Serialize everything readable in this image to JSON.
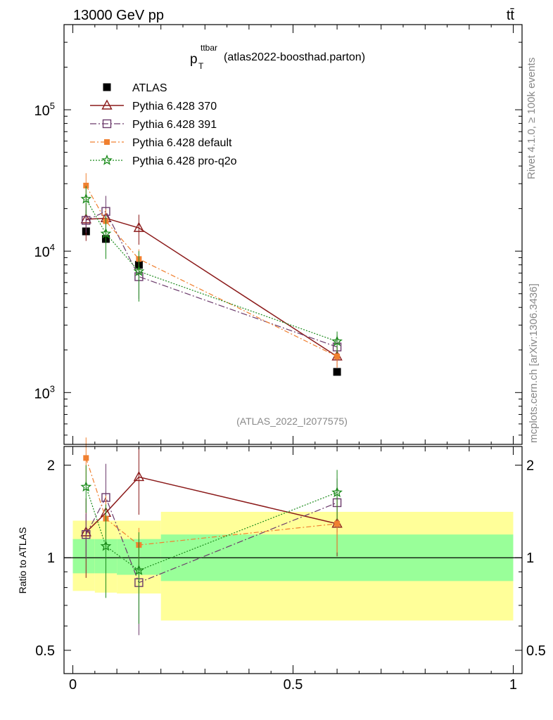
{
  "header": {
    "energy_label": "13000 GeV pp",
    "process_label": "tt̄"
  },
  "title": {
    "main": "p",
    "sub": "T",
    "sup": "ttbar",
    "rest": "(atlas2022-boosthad.parton)"
  },
  "side_labels": {
    "rivet": "Rivet 4.1.0, ≥ 100k events",
    "mcplots": "mcplots.cern.ch [arXiv:1306.3436]"
  },
  "analysis_id": "(ATLAS_2022_I2077575)",
  "colors": {
    "atlas": "#000000",
    "py370": "#8b1a1a",
    "py391": "#6b3a6b",
    "pydefault": "#f08030",
    "pyq2o": "#1a8a1a",
    "band_inner": "#99ff99",
    "band_outer": "#ffff99"
  },
  "chart_data": {
    "type": "scatter",
    "main_panel": {
      "yscale": "log",
      "ylim": [
        430,
        400000
      ],
      "ytick_labels": [
        {
          "value": 1000,
          "base": "10",
          "exp": "3"
        },
        {
          "value": 10000,
          "base": "10",
          "exp": "4"
        },
        {
          "value": 100000,
          "base": "10",
          "exp": "5"
        }
      ],
      "legend_position": "top-left",
      "series": [
        {
          "key": "atlas",
          "name": "ATLAS",
          "marker": "square-filled",
          "x": [
            0.03,
            0.075,
            0.15,
            0.6
          ],
          "y": [
            13800,
            12200,
            8000,
            1400
          ],
          "yerr_up": [
            0,
            0,
            0,
            0
          ],
          "yerr_dn": [
            0,
            0,
            0,
            0
          ]
        },
        {
          "key": "py370",
          "name": "Pythia 6.428 370",
          "marker": "triangle-open",
          "linestyle": "solid",
          "x": [
            0.03,
            0.075,
            0.15,
            0.6
          ],
          "y": [
            16800,
            17100,
            14600,
            1800
          ],
          "yerr_up": [
            5000,
            3000,
            3500,
            300
          ],
          "yerr_dn": [
            5000,
            3000,
            3500,
            300
          ]
        },
        {
          "key": "py391",
          "name": "Pythia 6.428 391",
          "marker": "square-open",
          "linestyle": "dashdot",
          "x": [
            0.03,
            0.075,
            0.15,
            0.6
          ],
          "y": [
            16500,
            19100,
            6600,
            2100
          ],
          "yerr_up": [
            3000,
            5500,
            2000,
            450
          ],
          "yerr_dn": [
            3000,
            5500,
            2000,
            450
          ]
        },
        {
          "key": "pydefault",
          "name": "Pythia 6.428 default",
          "marker": "square-filled-small",
          "linestyle": "dashdot-dense",
          "x": [
            0.03,
            0.075,
            0.15,
            0.6
          ],
          "y": [
            29100,
            16300,
            8800,
            1800
          ],
          "yerr_up": [
            6500,
            3500,
            1500,
            300
          ],
          "yerr_dn": [
            6500,
            3500,
            1500,
            300
          ]
        },
        {
          "key": "pyq2o",
          "name": "Pythia 6.428 pro-q2o",
          "marker": "star-open",
          "linestyle": "dotted",
          "x": [
            0.03,
            0.075,
            0.15,
            0.6
          ],
          "y": [
            23400,
            13300,
            7200,
            2300
          ],
          "yerr_up": [
            5500,
            4500,
            2800,
            400
          ],
          "yerr_dn": [
            5500,
            4500,
            2800,
            400
          ]
        }
      ]
    },
    "ratio_panel": {
      "ylabel": "Ratio to ATLAS",
      "yscale": "log",
      "ylim": [
        0.42,
        2.3
      ],
      "ytick_labels": [
        {
          "value": 0.5,
          "label": "0.5"
        },
        {
          "value": 1,
          "label": "1"
        },
        {
          "value": 2,
          "label": "2"
        }
      ],
      "bands": [
        {
          "x0": 0.0,
          "x1": 0.05,
          "inner": [
            0.89,
            1.15
          ],
          "outer": [
            0.78,
            1.32
          ]
        },
        {
          "x0": 0.05,
          "x1": 0.1,
          "inner": [
            0.89,
            1.15
          ],
          "outer": [
            0.77,
            1.32
          ]
        },
        {
          "x0": 0.1,
          "x1": 0.2,
          "inner": [
            0.88,
            1.15
          ],
          "outer": [
            0.765,
            1.32
          ]
        },
        {
          "x0": 0.2,
          "x1": 1.0,
          "inner": [
            0.84,
            1.19
          ],
          "outer": [
            0.625,
            1.41
          ]
        }
      ],
      "series": [
        {
          "key": "py370",
          "x": [
            0.03,
            0.075,
            0.15,
            0.6
          ],
          "y": [
            1.21,
            1.4,
            1.83,
            1.29
          ],
          "yerr_up": [
            0.35,
            0.25,
            0.45,
            0.28
          ],
          "yerr_dn": [
            0.35,
            0.25,
            0.45,
            0.28
          ]
        },
        {
          "key": "py391",
          "x": [
            0.03,
            0.075,
            0.15,
            0.6
          ],
          "y": [
            1.19,
            1.57,
            0.83,
            1.51
          ],
          "yerr_up": [
            0.2,
            0.45,
            0.25,
            0.3
          ],
          "yerr_dn": [
            0.2,
            0.45,
            0.27,
            0.3
          ]
        },
        {
          "key": "pydefault",
          "x": [
            0.03,
            0.075,
            0.15,
            0.6
          ],
          "y": [
            2.11,
            1.34,
            1.1,
            1.29
          ],
          "yerr_up": [
            0.35,
            0.25,
            0.15,
            0.25
          ],
          "yerr_dn": [
            0.35,
            0.25,
            0.15,
            0.25
          ]
        },
        {
          "key": "pyq2o",
          "x": [
            0.03,
            0.075,
            0.15,
            0.6
          ],
          "y": [
            1.7,
            1.09,
            0.91,
            1.63
          ],
          "yerr_up": [
            0.3,
            0.4,
            0.3,
            0.3
          ],
          "yerr_dn": [
            0.3,
            0.35,
            0.3,
            0.3
          ]
        }
      ]
    },
    "x_axis": {
      "xlim": [
        -0.02,
        1.02
      ],
      "tick_labels": [
        {
          "value": 0,
          "label": "0"
        },
        {
          "value": 0.5,
          "label": "0.5"
        },
        {
          "value": 1,
          "label": "1"
        }
      ]
    }
  }
}
